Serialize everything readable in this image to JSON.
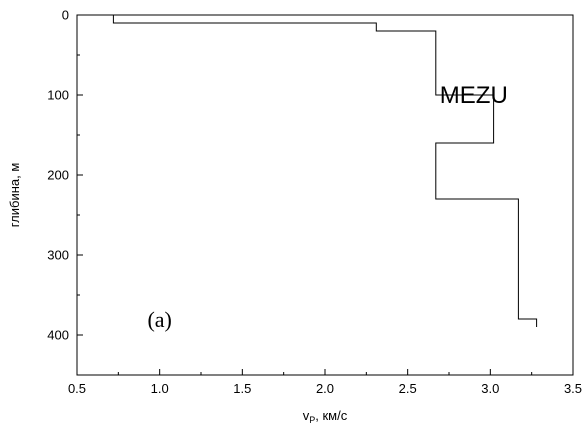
{
  "chart_data": {
    "type": "line",
    "title": "",
    "xlabel": "v",
    "xlabel_subscript": "P",
    "xlabel_suffix": ", км/с",
    "ylabel": "глибина, м",
    "xlim": [
      0.5,
      3.5
    ],
    "ylim": [
      0,
      450
    ],
    "y_inverted": true,
    "x_ticks": [
      "0.5",
      "1.0",
      "1.5",
      "2.0",
      "2.5",
      "3.0",
      "3.5"
    ],
    "y_ticks": [
      "0",
      "100",
      "200",
      "300",
      "400"
    ],
    "grid": false,
    "series": [
      {
        "x": [
          0.72,
          0.72,
          2.31,
          2.31,
          2.67,
          2.67,
          3.02,
          3.02,
          2.67,
          2.67,
          3.17,
          3.17,
          3.28,
          3.28
        ],
        "y": [
          0,
          10,
          10,
          20,
          20,
          100,
          100,
          160,
          160,
          230,
          230,
          380,
          380,
          390
        ]
      }
    ],
    "annotations": [
      {
        "text": "MEZU",
        "x": 2.9,
        "y": 110
      },
      {
        "text": "(a)",
        "x": 1.0,
        "y": 390
      }
    ]
  }
}
